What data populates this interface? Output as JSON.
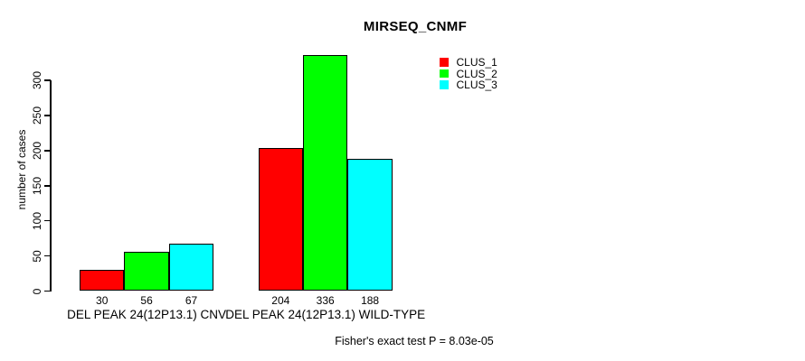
{
  "chart_data": {
    "type": "bar",
    "title": "MIRSEQ_CNMF",
    "ylabel": "number of cases",
    "xlabel": "",
    "categories": [
      "DEL PEAK 24(12P13.1) CNV",
      "DEL PEAK 24(12P13.1) WILD-TYPE"
    ],
    "series": [
      {
        "name": "CLUS_1",
        "color": "#ff0000",
        "values": [
          30,
          204
        ]
      },
      {
        "name": "CLUS_2",
        "color": "#00ff00",
        "values": [
          56,
          336
        ]
      },
      {
        "name": "CLUS_3",
        "color": "#00ffff",
        "values": [
          67,
          188
        ]
      }
    ],
    "yticks": [
      0,
      50,
      100,
      150,
      200,
      250,
      300
    ],
    "ylim": [
      0,
      336
    ],
    "grid": false,
    "legend_position": "top-right",
    "bar_border_color": "#000000",
    "footer": "Fisher's exact test P = 8.03e-05"
  }
}
